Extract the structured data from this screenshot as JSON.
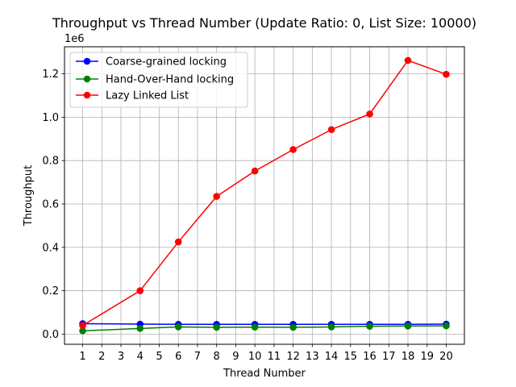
{
  "chart_data": {
    "type": "line",
    "title": "Throughput vs Thread Number (Update Ratio: 0, List Size: 10000)",
    "xlabel": "Thread Number",
    "ylabel": "Throughput",
    "y_offset_label": "1e6",
    "xlim": [
      0.05,
      20.95
    ],
    "ylim": [
      -0.047,
      1.325
    ],
    "xticks": [
      1,
      2,
      3,
      4,
      5,
      6,
      7,
      8,
      9,
      10,
      11,
      12,
      13,
      14,
      15,
      16,
      17,
      18,
      19,
      20
    ],
    "yticks": [
      0.0,
      0.2,
      0.4,
      0.6,
      0.8,
      1.0,
      1.2
    ],
    "ytick_labels": [
      "0.0",
      "0.2",
      "0.4",
      "0.6",
      "0.8",
      "1.0",
      "1.2"
    ],
    "grid": true,
    "legend_position": "upper-left",
    "x": [
      1,
      4,
      6,
      8,
      10,
      12,
      14,
      16,
      18,
      20
    ],
    "series": [
      {
        "name": "Coarse-grained locking",
        "color": "#0000ff",
        "values": [
          0.048,
          0.046,
          0.045,
          0.045,
          0.045,
          0.045,
          0.045,
          0.045,
          0.045,
          0.046
        ]
      },
      {
        "name": "Hand-Over-Hand locking",
        "color": "#008000",
        "values": [
          0.015,
          0.026,
          0.033,
          0.031,
          0.032,
          0.031,
          0.033,
          0.036,
          0.037,
          0.038
        ]
      },
      {
        "name": "Lazy Linked List",
        "color": "#ff0000",
        "values": [
          0.04,
          0.2,
          0.425,
          0.635,
          0.752,
          0.851,
          0.943,
          1.015,
          1.262,
          1.198
        ]
      }
    ]
  }
}
